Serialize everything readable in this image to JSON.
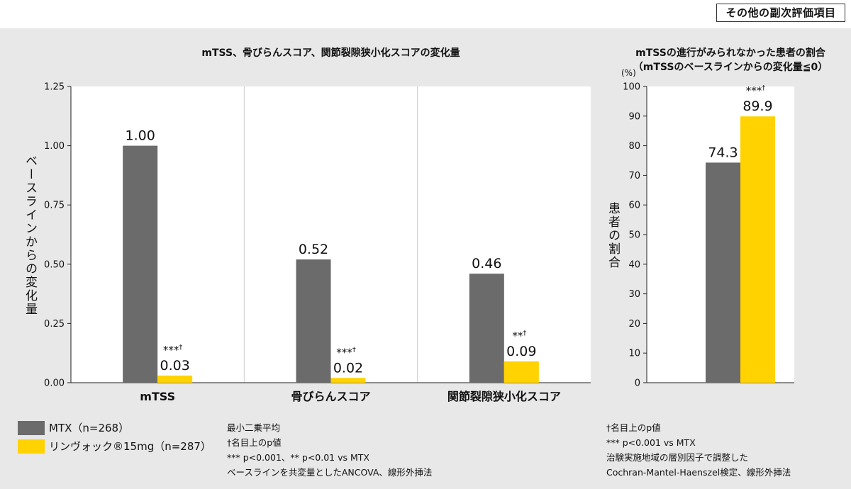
{
  "header": {
    "badge": "その他の副次評価項目"
  },
  "colors": {
    "mtx": "#6b6b6b",
    "rinvoq": "#ffd200",
    "panel": "#e8e8e8",
    "plot": "#ffffff"
  },
  "legend": {
    "mtx": "MTX（n=268）",
    "rinvoq": "リンヴォック®15mg（n=287）"
  },
  "notes_left": [
    "最小二乗平均",
    "†名目上のp値",
    "*** p<0.001、** p<0.01 vs MTX",
    "ベースラインを共変量としたANCOVA、線形外挿法"
  ],
  "notes_right": [
    "†名目上のp値",
    "*** p<0.001 vs MTX",
    "治験実施地域の層別因子で調整した",
    "Cochran-Mantel-Haenszel検定、線形外挿法"
  ],
  "chart_data": [
    {
      "type": "bar",
      "title": "mTSS、骨びらんスコア、関節裂隙狭小化スコアの変化量",
      "ylabel": "ベースラインからの変化量",
      "categories": [
        "mTSS",
        "骨びらんスコア",
        "関節裂隙狭小化スコア"
      ],
      "ylim": [
        0,
        1.25
      ],
      "yticks": [
        "0.00",
        "0.25",
        "0.50",
        "0.75",
        "1.00",
        "1.25"
      ],
      "series": [
        {
          "name": "MTX（n=268）",
          "values": [
            1.0,
            0.52,
            0.46
          ],
          "labels": [
            "1.00",
            "0.52",
            "0.46"
          ]
        },
        {
          "name": "リンヴォック®15mg（n=287）",
          "values": [
            0.03,
            0.02,
            0.09
          ],
          "labels": [
            "0.03",
            "0.02",
            "0.09"
          ]
        }
      ],
      "significance": [
        "***",
        "***",
        "**"
      ],
      "dagger": "†"
    },
    {
      "type": "bar",
      "title": "mTSSの進行がみられなかった患者の割合",
      "subtitle": "（mTSSのベースラインからの変化量≦0）",
      "ylabel": "患者の割合",
      "unit": "(%)",
      "ylim": [
        0,
        100
      ],
      "yticks": [
        "0",
        "10",
        "20",
        "30",
        "40",
        "50",
        "60",
        "70",
        "80",
        "90",
        "100"
      ],
      "series": [
        {
          "name": "MTX（n=268）",
          "values": [
            74.3
          ],
          "labels": [
            "74.3"
          ]
        },
        {
          "name": "リンヴォック®15mg（n=287）",
          "values": [
            89.9
          ],
          "labels": [
            "89.9"
          ]
        }
      ],
      "significance": [
        "***"
      ],
      "dagger": "†"
    }
  ]
}
